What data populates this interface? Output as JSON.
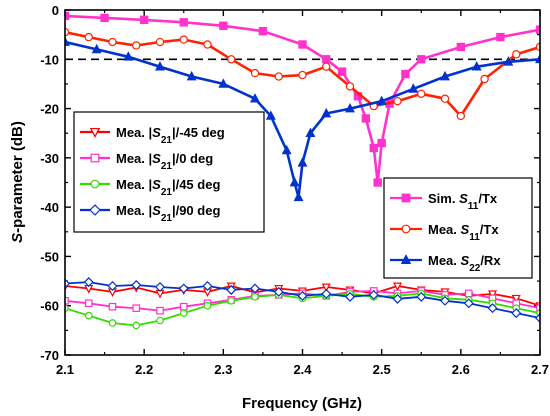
{
  "chart_data": {
    "type": "line",
    "xlabel": "Frequency (GHz)",
    "ylabel_italic": "S",
    "ylabel_rest": "-parameter (dB)",
    "xlim": [
      2.1,
      2.7
    ],
    "ylim": [
      -70,
      0
    ],
    "xticks": [
      "2.1",
      "2.2",
      "2.3",
      "2.4",
      "2.5",
      "2.6",
      "2.7"
    ],
    "yticks": [
      "0",
      "-10",
      "-20",
      "-30",
      "-40",
      "-50",
      "-60",
      "-70"
    ],
    "reference_line": {
      "y": -10,
      "style": "dashed"
    },
    "legend_left_position": "left, mid-height",
    "legend_right_position": "right, mid-height",
    "series": [
      {
        "name": "Sim. S11/Tx",
        "legend_parts": [
          "Sim. ",
          "S",
          "11",
          "/Tx"
        ],
        "legend_group": "right",
        "color": "#ff33cc",
        "marker": "square-filled",
        "x": [
          2.1,
          2.15,
          2.2,
          2.25,
          2.3,
          2.35,
          2.4,
          2.43,
          2.45,
          2.47,
          2.48,
          2.49,
          2.495,
          2.5,
          2.51,
          2.53,
          2.55,
          2.6,
          2.65,
          2.7
        ],
        "y": [
          -1.2,
          -1.6,
          -2.0,
          -2.5,
          -3.2,
          -4.3,
          -7.0,
          -10.0,
          -12.5,
          -17.5,
          -22.0,
          -28.0,
          -35.0,
          -27.0,
          -19.0,
          -13.0,
          -10.0,
          -7.5,
          -5.5,
          -4.0
        ]
      },
      {
        "name": "Mea. S11/Tx",
        "legend_parts": [
          "Mea. ",
          "S",
          "11",
          "/Tx"
        ],
        "legend_group": "right",
        "color": "#ff2200",
        "marker": "circle-open",
        "x": [
          2.1,
          2.13,
          2.16,
          2.19,
          2.22,
          2.25,
          2.28,
          2.31,
          2.34,
          2.37,
          2.4,
          2.43,
          2.46,
          2.49,
          2.52,
          2.55,
          2.58,
          2.6,
          2.63,
          2.67,
          2.7
        ],
        "y": [
          -4.5,
          -5.5,
          -6.5,
          -7.2,
          -6.5,
          -6.0,
          -7.0,
          -10.0,
          -12.8,
          -13.5,
          -13.2,
          -11.5,
          -15.5,
          -19.5,
          -18.5,
          -17.0,
          -18.0,
          -21.5,
          -14.0,
          -9.0,
          -7.5
        ]
      },
      {
        "name": "Mea. S22/Rx",
        "legend_parts": [
          "Mea. ",
          "S",
          "22",
          "/Rx"
        ],
        "legend_group": "right",
        "color": "#0033cc",
        "marker": "triangle-filled",
        "x": [
          2.1,
          2.14,
          2.18,
          2.22,
          2.26,
          2.3,
          2.34,
          2.36,
          2.38,
          2.39,
          2.395,
          2.4,
          2.41,
          2.43,
          2.46,
          2.5,
          2.54,
          2.58,
          2.62,
          2.66,
          2.7
        ],
        "y": [
          -6.5,
          -8.0,
          -9.5,
          -11.5,
          -13.5,
          -15.0,
          -18.0,
          -21.5,
          -28.5,
          -35.0,
          -38.0,
          -31.0,
          -25.0,
          -21.0,
          -20.0,
          -18.5,
          -16.0,
          -13.5,
          -11.5,
          -10.5,
          -10.0
        ]
      },
      {
        "name": "Mea. |S21|/-45 deg",
        "legend_parts": [
          "Mea. |",
          "S",
          "21",
          "|/-45 deg"
        ],
        "legend_group": "left",
        "color": "#ff0000",
        "marker": "triangle-down-open",
        "x": [
          2.1,
          2.13,
          2.16,
          2.19,
          2.22,
          2.25,
          2.28,
          2.31,
          2.34,
          2.37,
          2.4,
          2.43,
          2.46,
          2.49,
          2.52,
          2.55,
          2.58,
          2.61,
          2.64,
          2.67,
          2.7
        ],
        "y": [
          -56.0,
          -56.5,
          -57.2,
          -56.3,
          -57.5,
          -56.8,
          -57.2,
          -56.0,
          -57.3,
          -56.5,
          -57.0,
          -56.2,
          -56.8,
          -57.5,
          -56.0,
          -56.8,
          -57.2,
          -58.0,
          -57.6,
          -58.5,
          -60.0
        ]
      },
      {
        "name": "Mea. |S21|/0 deg",
        "legend_parts": [
          "Mea. |",
          "S",
          "21",
          "|/0 deg"
        ],
        "legend_group": "left",
        "color": "#ff33cc",
        "marker": "square-open",
        "x": [
          2.1,
          2.13,
          2.16,
          2.19,
          2.22,
          2.25,
          2.28,
          2.31,
          2.34,
          2.37,
          2.4,
          2.43,
          2.46,
          2.49,
          2.52,
          2.55,
          2.58,
          2.61,
          2.64,
          2.67,
          2.7
        ],
        "y": [
          -59.0,
          -59.5,
          -60.2,
          -60.5,
          -61.0,
          -60.2,
          -59.5,
          -58.8,
          -58.0,
          -57.8,
          -57.5,
          -58.0,
          -57.2,
          -57.0,
          -57.5,
          -57.0,
          -57.8,
          -57.5,
          -58.5,
          -59.5,
          -60.5
        ]
      },
      {
        "name": "Mea. |S21|/45 deg",
        "legend_parts": [
          "Mea. |",
          "S",
          "21",
          "|/45 deg"
        ],
        "legend_group": "left",
        "color": "#33dd00",
        "marker": "circle-open",
        "x": [
          2.1,
          2.13,
          2.16,
          2.19,
          2.22,
          2.25,
          2.28,
          2.31,
          2.34,
          2.37,
          2.4,
          2.43,
          2.46,
          2.49,
          2.52,
          2.55,
          2.58,
          2.61,
          2.64,
          2.67,
          2.7
        ],
        "y": [
          -60.5,
          -62.0,
          -63.5,
          -64.0,
          -63.0,
          -61.5,
          -60.0,
          -59.0,
          -58.2,
          -57.8,
          -58.5,
          -58.0,
          -57.6,
          -58.2,
          -58.0,
          -57.5,
          -58.5,
          -58.8,
          -59.5,
          -60.5,
          -61.5
        ]
      },
      {
        "name": "Mea. |S21|/90 deg",
        "legend_parts": [
          "Mea. |",
          "S",
          "21",
          "|/90 deg"
        ],
        "legend_group": "left",
        "color": "#0033cc",
        "marker": "diamond-open",
        "x": [
          2.1,
          2.13,
          2.16,
          2.19,
          2.22,
          2.25,
          2.28,
          2.31,
          2.34,
          2.37,
          2.4,
          2.43,
          2.46,
          2.49,
          2.52,
          2.55,
          2.58,
          2.61,
          2.64,
          2.67,
          2.7
        ],
        "y": [
          -55.5,
          -55.2,
          -56.0,
          -55.8,
          -56.2,
          -56.5,
          -56.0,
          -56.8,
          -56.5,
          -57.2,
          -58.0,
          -57.6,
          -58.2,
          -57.8,
          -58.6,
          -58.2,
          -59.0,
          -59.5,
          -60.5,
          -61.5,
          -62.5
        ]
      }
    ]
  }
}
